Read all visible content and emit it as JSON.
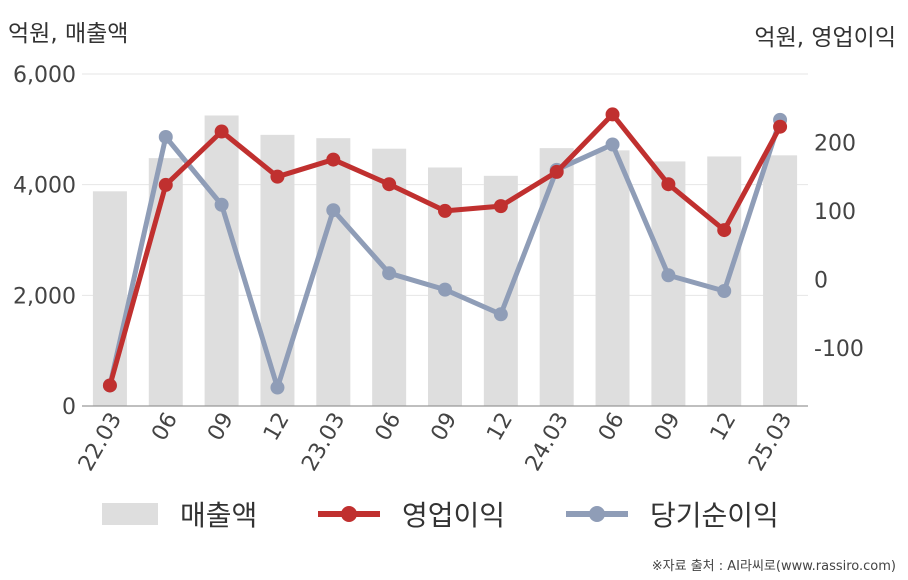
{
  "units": {
    "left": "억원, 매출액",
    "right": "억원, 영업이익"
  },
  "source": "※자료 출처 : AI라씨로(www.rassiro.com)",
  "colors": {
    "bar": "#dedede",
    "operating_profit": "#c0302f",
    "net_income": "#8f9db7",
    "grid": "#e6e6e6",
    "axis": "#999999"
  },
  "chart_data": {
    "type": "bar+line",
    "categories": [
      "22.03",
      "06",
      "09",
      "12",
      "23.03",
      "06",
      "09",
      "12",
      "24.03",
      "06",
      "09",
      "12",
      "25.03"
    ],
    "y_left": {
      "ticks": [
        "0",
        "2,000",
        "4,000",
        "6,000"
      ],
      "min": 0,
      "max": 6000
    },
    "y_right": {
      "ticks": [
        "-100",
        "0",
        "100",
        "200"
      ],
      "min": -185,
      "max": 300
    },
    "series": [
      {
        "name": "매출액",
        "type": "bar",
        "axis": "left",
        "values": [
          3880,
          4480,
          5250,
          4900,
          4840,
          4650,
          4310,
          4160,
          4660,
          4620,
          4420,
          4510,
          4530
        ]
      },
      {
        "name": "영업이익",
        "type": "line",
        "axis": "right",
        "values": [
          -155,
          138,
          216,
          150,
          175,
          139,
          100,
          107,
          157,
          241,
          139,
          72,
          223
        ]
      },
      {
        "name": "당기순이익",
        "type": "line",
        "axis": "right",
        "values": [
          -155,
          208,
          109,
          -158,
          101,
          9,
          -15,
          -51,
          160,
          197,
          6,
          -17,
          233
        ]
      }
    ],
    "grid": true,
    "legend_position": "bottom"
  }
}
